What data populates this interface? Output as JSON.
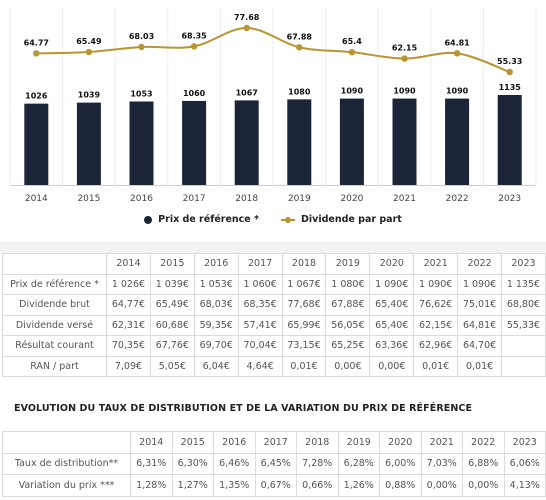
{
  "chart_data": {
    "type": "bar",
    "categories": [
      "2014",
      "2015",
      "2016",
      "2017",
      "2018",
      "2019",
      "2020",
      "2021",
      "2022",
      "2023"
    ],
    "series": [
      {
        "name": "Prix de référence *",
        "type": "bar",
        "values": [
          1026,
          1039,
          1053,
          1060,
          1067,
          1080,
          1090,
          1090,
          1090,
          1135
        ],
        "labels": [
          "1026",
          "1039",
          "1053",
          "1060",
          "1067",
          "1080",
          "1090",
          "1090",
          "1090",
          "1135"
        ],
        "color": "#1b2537"
      },
      {
        "name": "Dividende par part",
        "type": "line",
        "values": [
          64.77,
          65.49,
          68.03,
          68.35,
          77.68,
          67.88,
          65.4,
          62.15,
          64.81,
          55.33
        ],
        "labels": [
          "64.77",
          "65.49",
          "68.03",
          "68.35",
          "77.68",
          "67.88",
          "65.4",
          "62.15",
          "64.81",
          "55.33"
        ],
        "color": "#b8952e"
      }
    ],
    "legend_position": "bottom"
  },
  "table1": {
    "headers": [
      "",
      "2014",
      "2015",
      "2016",
      "2017",
      "2018",
      "2019",
      "2020",
      "2021",
      "2022",
      "2023"
    ],
    "rows": [
      [
        "Prix de référence *",
        "1 026€",
        "1 039€",
        "1 053€",
        "1 060€",
        "1 067€",
        "1 080€",
        "1 090€",
        "1 090€",
        "1 090€",
        "1 135€"
      ],
      [
        "Dividende brut",
        "64,77€",
        "65,49€",
        "68,03€",
        "68,35€",
        "77,68€",
        "67,88€",
        "65,40€",
        "76,62€",
        "75,01€",
        "68,80€"
      ],
      [
        "Dividende versé",
        "62,31€",
        "60,68€",
        "59,35€",
        "57,41€",
        "65,99€",
        "56,05€",
        "65,40€",
        "62,15€",
        "64,81€",
        "55,33€"
      ],
      [
        "Résultat courant",
        "70,35€",
        "67,76€",
        "69,70€",
        "70,04€",
        "73,15€",
        "65,25€",
        "63,36€",
        "62,96€",
        "64,70€",
        ""
      ],
      [
        "RAN / part",
        "7,09€",
        "5,05€",
        "6,04€",
        "4,64€",
        "0,01€",
        "0,00€",
        "0,00€",
        "0,01€",
        "0,01€",
        ""
      ]
    ]
  },
  "section2_title": "EVOLUTION DU TAUX DE DISTRIBUTION ET DE LA VARIATION DU PRIX DE RÉFÉRENCE",
  "table2": {
    "headers": [
      "",
      "2014",
      "2015",
      "2016",
      "2017",
      "2018",
      "2019",
      "2020",
      "2021",
      "2022",
      "2023"
    ],
    "rows": [
      [
        "Taux de distribution**",
        "6,31%",
        "6,30%",
        "6,46%",
        "6,45%",
        "7,28%",
        "6,28%",
        "6,00%",
        "7,03%",
        "6,88%",
        "6,06%"
      ],
      [
        "Variation du prix ***",
        "1,28%",
        "1,27%",
        "1,35%",
        "0,67%",
        "0,66%",
        "1,26%",
        "0,88%",
        "0,00%",
        "0,00%",
        "4,13%"
      ]
    ]
  }
}
